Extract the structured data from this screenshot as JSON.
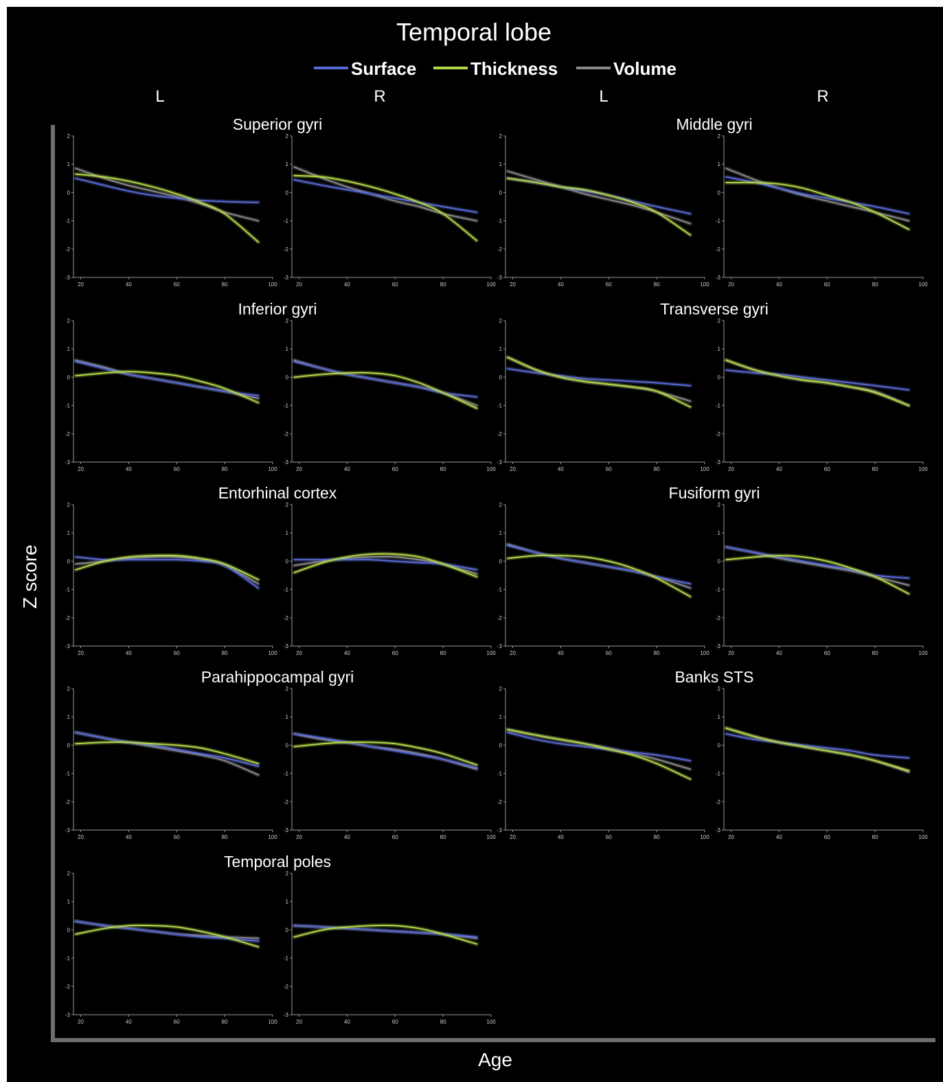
{
  "title": "Temporal lobe",
  "legend": [
    {
      "name": "Surface",
      "color": "#5b6bd6"
    },
    {
      "name": "Thickness",
      "color": "#b5d84a"
    },
    {
      "name": "Volume",
      "color": "#8a8a8a"
    }
  ],
  "hemisphere_labels": [
    "L",
    "R",
    "L",
    "R"
  ],
  "axis": {
    "xlabel": "Age",
    "ylabel": "Z score"
  },
  "colors": {
    "background": "#000000",
    "text": "#ffffff",
    "axis_line": "#6e6e6e",
    "tick": "#cccccc"
  },
  "chart_data": {
    "type": "line",
    "xlim": [
      17,
      100
    ],
    "ylim": [
      -3,
      2
    ],
    "xticks": [
      20,
      40,
      60,
      80,
      100
    ],
    "yticks": [
      2,
      1,
      0,
      -1,
      -2,
      -3
    ],
    "series_names": [
      "Surface",
      "Thickness",
      "Volume"
    ],
    "x": [
      18,
      30,
      40,
      50,
      60,
      70,
      80,
      94
    ],
    "regions": [
      {
        "title": "Superior gyri",
        "panels": [
          {
            "hemisphere": "L",
            "series": [
              {
                "name": "Surface",
                "values": [
                  0.5,
                  0.25,
                  0.05,
                  -0.1,
                  -0.2,
                  -0.28,
                  -0.32,
                  -0.35
                ]
              },
              {
                "name": "Thickness",
                "values": [
                  0.65,
                  0.55,
                  0.4,
                  0.2,
                  -0.05,
                  -0.35,
                  -0.75,
                  -1.75
                ]
              },
              {
                "name": "Volume",
                "values": [
                  0.85,
                  0.5,
                  0.25,
                  0.05,
                  -0.15,
                  -0.4,
                  -0.7,
                  -1.0
                ]
              }
            ]
          },
          {
            "hemisphere": "R",
            "series": [
              {
                "name": "Surface",
                "values": [
                  0.45,
                  0.25,
                  0.1,
                  -0.05,
                  -0.2,
                  -0.35,
                  -0.5,
                  -0.7
                ]
              },
              {
                "name": "Thickness",
                "values": [
                  0.6,
                  0.55,
                  0.4,
                  0.2,
                  -0.05,
                  -0.35,
                  -0.75,
                  -1.7
                ]
              },
              {
                "name": "Volume",
                "values": [
                  0.9,
                  0.5,
                  0.2,
                  -0.05,
                  -0.3,
                  -0.5,
                  -0.75,
                  -1.0
                ]
              }
            ]
          }
        ]
      },
      {
        "title": "Middle gyri",
        "panels": [
          {
            "hemisphere": "L",
            "series": [
              {
                "name": "Surface",
                "values": [
                  0.5,
                  0.35,
                  0.2,
                  0.05,
                  -0.1,
                  -0.3,
                  -0.5,
                  -0.75
                ]
              },
              {
                "name": "Thickness",
                "values": [
                  0.5,
                  0.35,
                  0.2,
                  0.1,
                  -0.1,
                  -0.35,
                  -0.7,
                  -1.5
                ]
              },
              {
                "name": "Volume",
                "values": [
                  0.75,
                  0.45,
                  0.2,
                  -0.05,
                  -0.25,
                  -0.45,
                  -0.7,
                  -1.1
                ]
              }
            ]
          },
          {
            "hemisphere": "R",
            "series": [
              {
                "name": "Surface",
                "values": [
                  0.55,
                  0.35,
                  0.15,
                  -0.05,
                  -0.2,
                  -0.35,
                  -0.5,
                  -0.75
                ]
              },
              {
                "name": "Thickness",
                "values": [
                  0.35,
                  0.35,
                  0.3,
                  0.15,
                  -0.1,
                  -0.35,
                  -0.7,
                  -1.3
                ]
              },
              {
                "name": "Volume",
                "values": [
                  0.85,
                  0.45,
                  0.15,
                  -0.1,
                  -0.3,
                  -0.5,
                  -0.7,
                  -1.0
                ]
              }
            ]
          }
        ]
      },
      {
        "title": "Inferior gyri",
        "panels": [
          {
            "hemisphere": "L",
            "series": [
              {
                "name": "Surface",
                "values": [
                  0.55,
                  0.3,
                  0.1,
                  -0.05,
                  -0.2,
                  -0.35,
                  -0.5,
                  -0.65
                ]
              },
              {
                "name": "Thickness",
                "values": [
                  0.05,
                  0.15,
                  0.2,
                  0.15,
                  0.05,
                  -0.15,
                  -0.4,
                  -0.9
                ]
              },
              {
                "name": "Volume",
                "values": [
                  0.6,
                  0.35,
                  0.1,
                  -0.05,
                  -0.2,
                  -0.35,
                  -0.5,
                  -0.75
                ]
              }
            ]
          },
          {
            "hemisphere": "R",
            "series": [
              {
                "name": "Surface",
                "values": [
                  0.55,
                  0.3,
                  0.1,
                  -0.05,
                  -0.2,
                  -0.35,
                  -0.55,
                  -0.7
                ]
              },
              {
                "name": "Thickness",
                "values": [
                  0.0,
                  0.1,
                  0.15,
                  0.15,
                  0.05,
                  -0.2,
                  -0.55,
                  -1.1
                ]
              },
              {
                "name": "Volume",
                "values": [
                  0.6,
                  0.3,
                  0.1,
                  -0.05,
                  -0.2,
                  -0.35,
                  -0.55,
                  -1.0
                ]
              }
            ]
          }
        ]
      },
      {
        "title": "Transverse gyri",
        "panels": [
          {
            "hemisphere": "L",
            "series": [
              {
                "name": "Surface",
                "values": [
                  0.3,
                  0.15,
                  0.05,
                  -0.05,
                  -0.1,
                  -0.15,
                  -0.2,
                  -0.3
                ]
              },
              {
                "name": "Thickness",
                "values": [
                  0.7,
                  0.25,
                  0.0,
                  -0.15,
                  -0.25,
                  -0.35,
                  -0.5,
                  -1.05
                ]
              },
              {
                "name": "Volume",
                "values": [
                  0.7,
                  0.25,
                  0.0,
                  -0.15,
                  -0.25,
                  -0.35,
                  -0.5,
                  -0.85
                ]
              }
            ]
          },
          {
            "hemisphere": "R",
            "series": [
              {
                "name": "Surface",
                "values": [
                  0.25,
                  0.15,
                  0.1,
                  0.0,
                  -0.1,
                  -0.2,
                  -0.3,
                  -0.45
                ]
              },
              {
                "name": "Thickness",
                "values": [
                  0.6,
                  0.25,
                  0.05,
                  -0.1,
                  -0.2,
                  -0.35,
                  -0.55,
                  -1.0
                ]
              },
              {
                "name": "Volume",
                "values": [
                  0.6,
                  0.25,
                  0.05,
                  -0.1,
                  -0.2,
                  -0.35,
                  -0.5,
                  -1.0
                ]
              }
            ]
          }
        ]
      },
      {
        "title": "Entorhinal cortex",
        "panels": [
          {
            "hemisphere": "L",
            "series": [
              {
                "name": "Surface",
                "values": [
                  0.15,
                  0.05,
                  0.05,
                  0.05,
                  0.05,
                  0.0,
                  -0.15,
                  -0.95
                ]
              },
              {
                "name": "Thickness",
                "values": [
                  -0.3,
                  0.0,
                  0.15,
                  0.2,
                  0.2,
                  0.1,
                  -0.1,
                  -0.65
                ]
              },
              {
                "name": "Volume",
                "values": [
                  -0.1,
                  0.0,
                  0.1,
                  0.15,
                  0.15,
                  0.05,
                  -0.15,
                  -0.8
                ]
              }
            ]
          },
          {
            "hemisphere": "R",
            "series": [
              {
                "name": "Surface",
                "values": [
                  0.05,
                  0.05,
                  0.05,
                  0.05,
                  0.0,
                  -0.05,
                  -0.1,
                  -0.3
                ]
              },
              {
                "name": "Thickness",
                "values": [
                  -0.4,
                  -0.05,
                  0.15,
                  0.25,
                  0.25,
                  0.15,
                  -0.1,
                  -0.55
                ]
              },
              {
                "name": "Volume",
                "values": [
                  -0.15,
                  0.0,
                  0.1,
                  0.15,
                  0.15,
                  0.05,
                  -0.1,
                  -0.45
                ]
              }
            ]
          }
        ]
      },
      {
        "title": "Fusiform gyri",
        "panels": [
          {
            "hemisphere": "L",
            "series": [
              {
                "name": "Surface",
                "values": [
                  0.55,
                  0.3,
                  0.1,
                  -0.05,
                  -0.2,
                  -0.35,
                  -0.55,
                  -0.8
                ]
              },
              {
                "name": "Thickness",
                "values": [
                  0.1,
                  0.2,
                  0.2,
                  0.15,
                  0.0,
                  -0.25,
                  -0.6,
                  -1.25
                ]
              },
              {
                "name": "Volume",
                "values": [
                  0.6,
                  0.3,
                  0.1,
                  -0.05,
                  -0.2,
                  -0.35,
                  -0.55,
                  -0.95
                ]
              }
            ]
          },
          {
            "hemisphere": "R",
            "series": [
              {
                "name": "Surface",
                "values": [
                  0.5,
                  0.3,
                  0.15,
                  0.0,
                  -0.15,
                  -0.3,
                  -0.5,
                  -0.6
                ]
              },
              {
                "name": "Thickness",
                "values": [
                  0.05,
                  0.15,
                  0.2,
                  0.15,
                  0.0,
                  -0.25,
                  -0.55,
                  -1.15
                ]
              },
              {
                "name": "Volume",
                "values": [
                  0.5,
                  0.3,
                  0.1,
                  -0.05,
                  -0.2,
                  -0.35,
                  -0.55,
                  -0.85
                ]
              }
            ]
          }
        ]
      },
      {
        "title": "Parahippocampal gyri",
        "panels": [
          {
            "hemisphere": "L",
            "series": [
              {
                "name": "Surface",
                "values": [
                  0.45,
                  0.25,
                  0.1,
                  0.0,
                  -0.15,
                  -0.3,
                  -0.45,
                  -0.75
                ]
              },
              {
                "name": "Thickness",
                "values": [
                  0.05,
                  0.1,
                  0.1,
                  0.05,
                  0.0,
                  -0.1,
                  -0.3,
                  -0.65
                ]
              },
              {
                "name": "Volume",
                "values": [
                  0.45,
                  0.25,
                  0.1,
                  -0.05,
                  -0.2,
                  -0.35,
                  -0.55,
                  -1.05
                ]
              }
            ]
          },
          {
            "hemisphere": "R",
            "series": [
              {
                "name": "Surface",
                "values": [
                  0.4,
                  0.25,
                  0.1,
                  -0.05,
                  -0.2,
                  -0.35,
                  -0.5,
                  -0.8
                ]
              },
              {
                "name": "Thickness",
                "values": [
                  -0.05,
                  0.05,
                  0.1,
                  0.1,
                  0.05,
                  -0.1,
                  -0.3,
                  -0.7
                ]
              },
              {
                "name": "Volume",
                "values": [
                  0.4,
                  0.2,
                  0.1,
                  -0.05,
                  -0.15,
                  -0.3,
                  -0.5,
                  -0.85
                ]
              }
            ]
          }
        ]
      },
      {
        "title": "Banks STS",
        "panels": [
          {
            "hemisphere": "L",
            "series": [
              {
                "name": "Surface",
                "values": [
                  0.45,
                  0.2,
                  0.05,
                  -0.05,
                  -0.15,
                  -0.25,
                  -0.35,
                  -0.55
                ]
              },
              {
                "name": "Thickness",
                "values": [
                  0.55,
                  0.35,
                  0.2,
                  0.05,
                  -0.15,
                  -0.35,
                  -0.65,
                  -1.2
                ]
              },
              {
                "name": "Volume",
                "values": [
                  0.55,
                  0.35,
                  0.2,
                  0.05,
                  -0.1,
                  -0.3,
                  -0.5,
                  -0.85
                ]
              }
            ]
          },
          {
            "hemisphere": "R",
            "series": [
              {
                "name": "Surface",
                "values": [
                  0.4,
                  0.2,
                  0.1,
                  0.0,
                  -0.1,
                  -0.2,
                  -0.35,
                  -0.45
                ]
              },
              {
                "name": "Thickness",
                "values": [
                  0.6,
                  0.3,
                  0.1,
                  -0.05,
                  -0.2,
                  -0.35,
                  -0.55,
                  -0.9
                ]
              },
              {
                "name": "Volume",
                "values": [
                  0.6,
                  0.3,
                  0.1,
                  -0.05,
                  -0.2,
                  -0.35,
                  -0.55,
                  -0.95
                ]
              }
            ]
          }
        ]
      },
      {
        "title": "Temporal poles",
        "panels": [
          {
            "hemisphere": "L",
            "series": [
              {
                "name": "Surface",
                "values": [
                  0.3,
                  0.15,
                  0.05,
                  -0.05,
                  -0.15,
                  -0.25,
                  -0.3,
                  -0.4
                ]
              },
              {
                "name": "Thickness",
                "values": [
                  -0.15,
                  0.05,
                  0.15,
                  0.15,
                  0.1,
                  -0.05,
                  -0.25,
                  -0.6
                ]
              },
              {
                "name": "Volume",
                "values": [
                  0.3,
                  0.15,
                  0.05,
                  -0.05,
                  -0.15,
                  -0.2,
                  -0.25,
                  -0.3
                ]
              }
            ]
          },
          {
            "hemisphere": "R",
            "series": [
              {
                "name": "Surface",
                "values": [
                  0.15,
                  0.1,
                  0.05,
                  0.0,
                  -0.05,
                  -0.1,
                  -0.15,
                  -0.25
                ]
              },
              {
                "name": "Thickness",
                "values": [
                  -0.25,
                  0.0,
                  0.1,
                  0.15,
                  0.15,
                  0.05,
                  -0.15,
                  -0.5
                ]
              },
              {
                "name": "Volume",
                "values": [
                  0.15,
                  0.1,
                  0.05,
                  0.0,
                  -0.05,
                  -0.1,
                  -0.15,
                  -0.3
                ]
              }
            ]
          }
        ]
      }
    ]
  }
}
